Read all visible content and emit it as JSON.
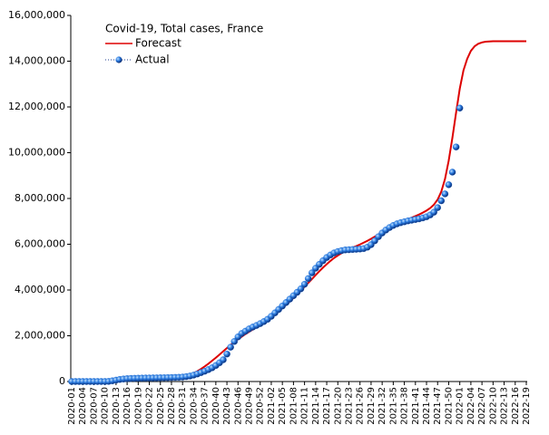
{
  "chart_data": {
    "type": "line",
    "legend_title": "Covid-19, Total cases, France",
    "legend_position": "upper left",
    "grid": false,
    "ylim": [
      0,
      16000000
    ],
    "yticks": [
      0,
      {
        "value": 2000000,
        "label": "2,000,000"
      },
      {
        "value": 4000000,
        "label": "4,000,000"
      },
      {
        "value": 6000000,
        "label": "6,000,000"
      },
      {
        "value": 8000000,
        "label": "8,000,000"
      },
      {
        "value": 10000000,
        "label": "10,000,000"
      },
      {
        "value": 12000000,
        "label": "12,000,000"
      },
      {
        "value": 14000000,
        "label": "14,000,000"
      },
      {
        "value": 16000000,
        "label": "16,000,000"
      }
    ],
    "categories": [
      "2020-01",
      null,
      null,
      "2020-04",
      null,
      null,
      "2020-07",
      null,
      null,
      "2020-10",
      null,
      null,
      "2020-13",
      null,
      null,
      "2020-16",
      null,
      null,
      "2020-19",
      null,
      null,
      "2020-22",
      null,
      null,
      "2020-25",
      null,
      null,
      "2020-28",
      null,
      null,
      "2020-31",
      null,
      null,
      "2020-34",
      null,
      null,
      "2020-37",
      null,
      null,
      "2020-40",
      null,
      null,
      "2020-43",
      null,
      null,
      "2020-46",
      null,
      null,
      "2020-49",
      null,
      null,
      "2020-52",
      null,
      null,
      "2021-02",
      null,
      null,
      "2021-05",
      null,
      null,
      "2021-08",
      null,
      null,
      "2021-11",
      null,
      null,
      "2021-14",
      null,
      null,
      "2021-17",
      null,
      null,
      "2021-20",
      null,
      null,
      "2021-23",
      null,
      null,
      "2021-26",
      null,
      null,
      "2021-29",
      null,
      null,
      "2021-32",
      null,
      null,
      "2021-35",
      null,
      null,
      "2021-38",
      null,
      null,
      "2021-41",
      null,
      null,
      "2021-44",
      null,
      null,
      "2021-47",
      null,
      null,
      "2021-50",
      null,
      null,
      "2022-01",
      null,
      null,
      "2022-04",
      null,
      null,
      "2022-07",
      null,
      null,
      "2022-10",
      null,
      null,
      "2022-13",
      null,
      null,
      "2022-16",
      null,
      null,
      "2022-19"
    ],
    "series": [
      {
        "name": "Forecast",
        "style": "line",
        "color": "#dd0000",
        "values": [
          0,
          0,
          0,
          0,
          0,
          0,
          0,
          0,
          0,
          0,
          20000,
          40000,
          60000,
          75000,
          90000,
          100000,
          110000,
          115000,
          120000,
          125000,
          130000,
          135000,
          140000,
          145000,
          150000,
          155000,
          160000,
          170000,
          180000,
          195000,
          215000,
          250000,
          300000,
          370000,
          450000,
          550000,
          660000,
          780000,
          910000,
          1040000,
          1180000,
          1320000,
          1460000,
          1600000,
          1730000,
          1850000,
          1960000,
          2070000,
          2170000,
          2270000,
          2370000,
          2470000,
          2580000,
          2690000,
          2810000,
          2940000,
          3070000,
          3210000,
          3350000,
          3500000,
          3650000,
          3810000,
          3970000,
          4140000,
          4310000,
          4480000,
          4650000,
          4820000,
          4980000,
          5130000,
          5270000,
          5400000,
          5510000,
          5610000,
          5700000,
          5780000,
          5850000,
          5920000,
          5990000,
          6070000,
          6150000,
          6240000,
          6330000,
          6420000,
          6510000,
          6600000,
          6690000,
          6780000,
          6860000,
          6940000,
          7020000,
          7090000,
          7160000,
          7230000,
          7300000,
          7380000,
          7470000,
          7580000,
          7730000,
          7950000,
          8300000,
          8850000,
          9650000,
          10650000,
          11750000,
          12800000,
          13600000,
          14100000,
          14450000,
          14650000,
          14760000,
          14820000,
          14850000,
          14860000,
          14870000,
          14870000,
          14870000,
          14870000,
          14870000,
          14870000,
          14870000,
          14870000,
          14870000,
          14870000
        ]
      },
      {
        "name": "Actual",
        "style": "marker",
        "color": "#1f6fd8",
        "values": [
          0,
          0,
          0,
          0,
          0,
          0,
          0,
          0,
          0,
          0,
          5000,
          30000,
          60000,
          90000,
          110000,
          125000,
          135000,
          140000,
          145000,
          150000,
          153000,
          155000,
          157000,
          160000,
          163000,
          166000,
          170000,
          175000,
          180000,
          185000,
          195000,
          215000,
          240000,
          280000,
          330000,
          390000,
          450000,
          520000,
          600000,
          700000,
          820000,
          950000,
          1200000,
          1500000,
          1750000,
          1950000,
          2100000,
          2200000,
          2300000,
          2380000,
          2450000,
          2530000,
          2620000,
          2720000,
          2850000,
          3000000,
          3150000,
          3300000,
          3450000,
          3600000,
          3750000,
          3900000,
          4050000,
          4250000,
          4500000,
          4750000,
          4950000,
          5120000,
          5280000,
          5420000,
          5530000,
          5620000,
          5680000,
          5720000,
          5750000,
          5760000,
          5770000,
          5780000,
          5790000,
          5810000,
          5870000,
          5980000,
          6150000,
          6330000,
          6490000,
          6620000,
          6730000,
          6820000,
          6890000,
          6940000,
          6980000,
          7020000,
          7050000,
          7080000,
          7110000,
          7150000,
          7200000,
          7280000,
          7400000,
          7600000,
          7900000,
          8200000,
          8600000,
          9150000,
          10250000,
          11950000,
          null,
          null,
          null,
          null,
          null,
          null,
          null,
          null,
          null,
          null,
          null,
          null,
          null,
          null,
          null,
          null,
          null,
          null
        ]
      }
    ]
  }
}
